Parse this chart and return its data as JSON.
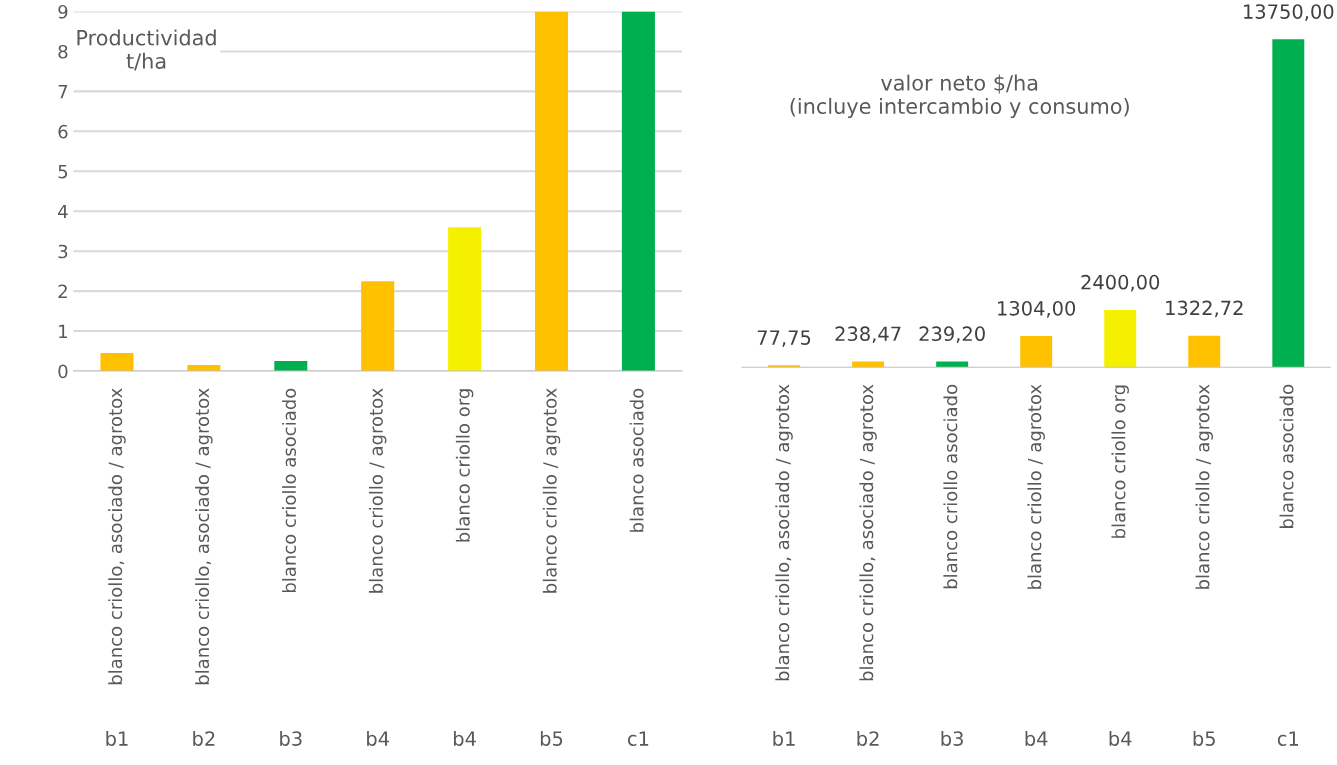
{
  "chart_data": [
    {
      "type": "bar",
      "title": "Productividad\nt/ha",
      "categories": [
        "blanco criollo, asociado / agrotox",
        "blanco criollo, asociado / agrotox",
        "blanco criollo asociado",
        "blanco criollo / agrotox",
        "blanco criollo org",
        "blanco criollo / agrotox",
        "blanco asociado"
      ],
      "annotations": [
        "b1",
        "b2",
        "b3",
        "b4",
        "b4",
        "b5",
        "c1"
      ],
      "values": [
        0.45,
        0.15,
        0.25,
        2.25,
        3.6,
        9.0,
        9.0
      ],
      "colors": [
        "#ffc000",
        "#ffc000",
        "#00b050",
        "#ffc000",
        "#f5f000",
        "#ffc000",
        "#00b050"
      ],
      "ylim": [
        0,
        9
      ],
      "yticks": [
        0,
        1,
        2,
        3,
        4,
        5,
        6,
        7,
        8,
        9
      ],
      "grid": "y"
    },
    {
      "type": "bar",
      "title": "valor neto $/ha\n(incluye intercambio y consumo)",
      "categories": [
        "blanco criollo, asociado / agrotox",
        "blanco criollo, asociado / agrotox",
        "blanco criollo asociado",
        "blanco criollo / agrotox",
        "blanco criollo org",
        "blanco criollo / agrotox",
        "blanco asociado"
      ],
      "annotations": [
        "b1",
        "b2",
        "b3",
        "b4",
        "b4",
        "b5",
        "c1"
      ],
      "values": [
        77.75,
        238.47,
        239.2,
        1304.0,
        2400.0,
        1322.72,
        13750.0
      ],
      "value_labels": [
        "77,75",
        "238,47",
        "239,20",
        "1304,00",
        "2400,00",
        "1322,72",
        "13750,00"
      ],
      "colors": [
        "#ffc000",
        "#ffc000",
        "#00b050",
        "#ffc000",
        "#f5f000",
        "#ffc000",
        "#00b050"
      ],
      "tick_labels": "x"
    }
  ]
}
